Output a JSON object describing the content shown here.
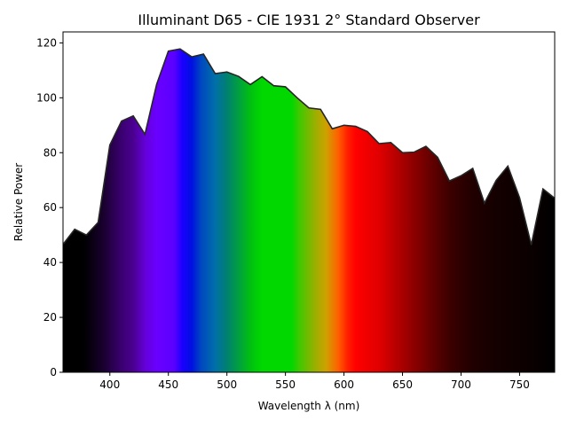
{
  "chart_data": {
    "type": "area",
    "title": "Illuminant D65 - CIE 1931 2$^\\circ$ Standard Observer",
    "title_display": "Illuminant D65 - CIE 1931 2°  Standard Observer",
    "xlabel": "Wavelength λ (nm)",
    "ylabel": "Relative Power",
    "xlim": [
      360,
      780
    ],
    "ylim": [
      0,
      124
    ],
    "xticks": [
      400,
      450,
      500,
      550,
      600,
      650,
      700,
      750
    ],
    "yticks": [
      0,
      20,
      40,
      60,
      80,
      100,
      120
    ],
    "grid": false,
    "fill": "spectrum",
    "line_color": "#262626",
    "x": [
      360,
      370,
      380,
      390,
      400,
      410,
      420,
      430,
      440,
      450,
      460,
      470,
      480,
      490,
      500,
      510,
      520,
      530,
      540,
      550,
      560,
      570,
      580,
      590,
      600,
      610,
      620,
      630,
      640,
      650,
      660,
      670,
      680,
      690,
      700,
      710,
      720,
      730,
      740,
      750,
      760,
      770,
      780
    ],
    "y": [
      46.6,
      52.1,
      50.0,
      54.6,
      82.8,
      91.5,
      93.4,
      86.7,
      104.9,
      117.0,
      117.8,
      114.9,
      115.9,
      108.8,
      109.4,
      107.8,
      104.8,
      107.7,
      104.4,
      104.0,
      100.0,
      96.3,
      95.8,
      88.7,
      90.0,
      89.6,
      87.7,
      83.3,
      83.7,
      80.0,
      80.2,
      82.3,
      78.3,
      69.7,
      71.6,
      74.3,
      61.6,
      69.9,
      75.1,
      63.6,
      46.4,
      66.8,
      63.4
    ]
  }
}
